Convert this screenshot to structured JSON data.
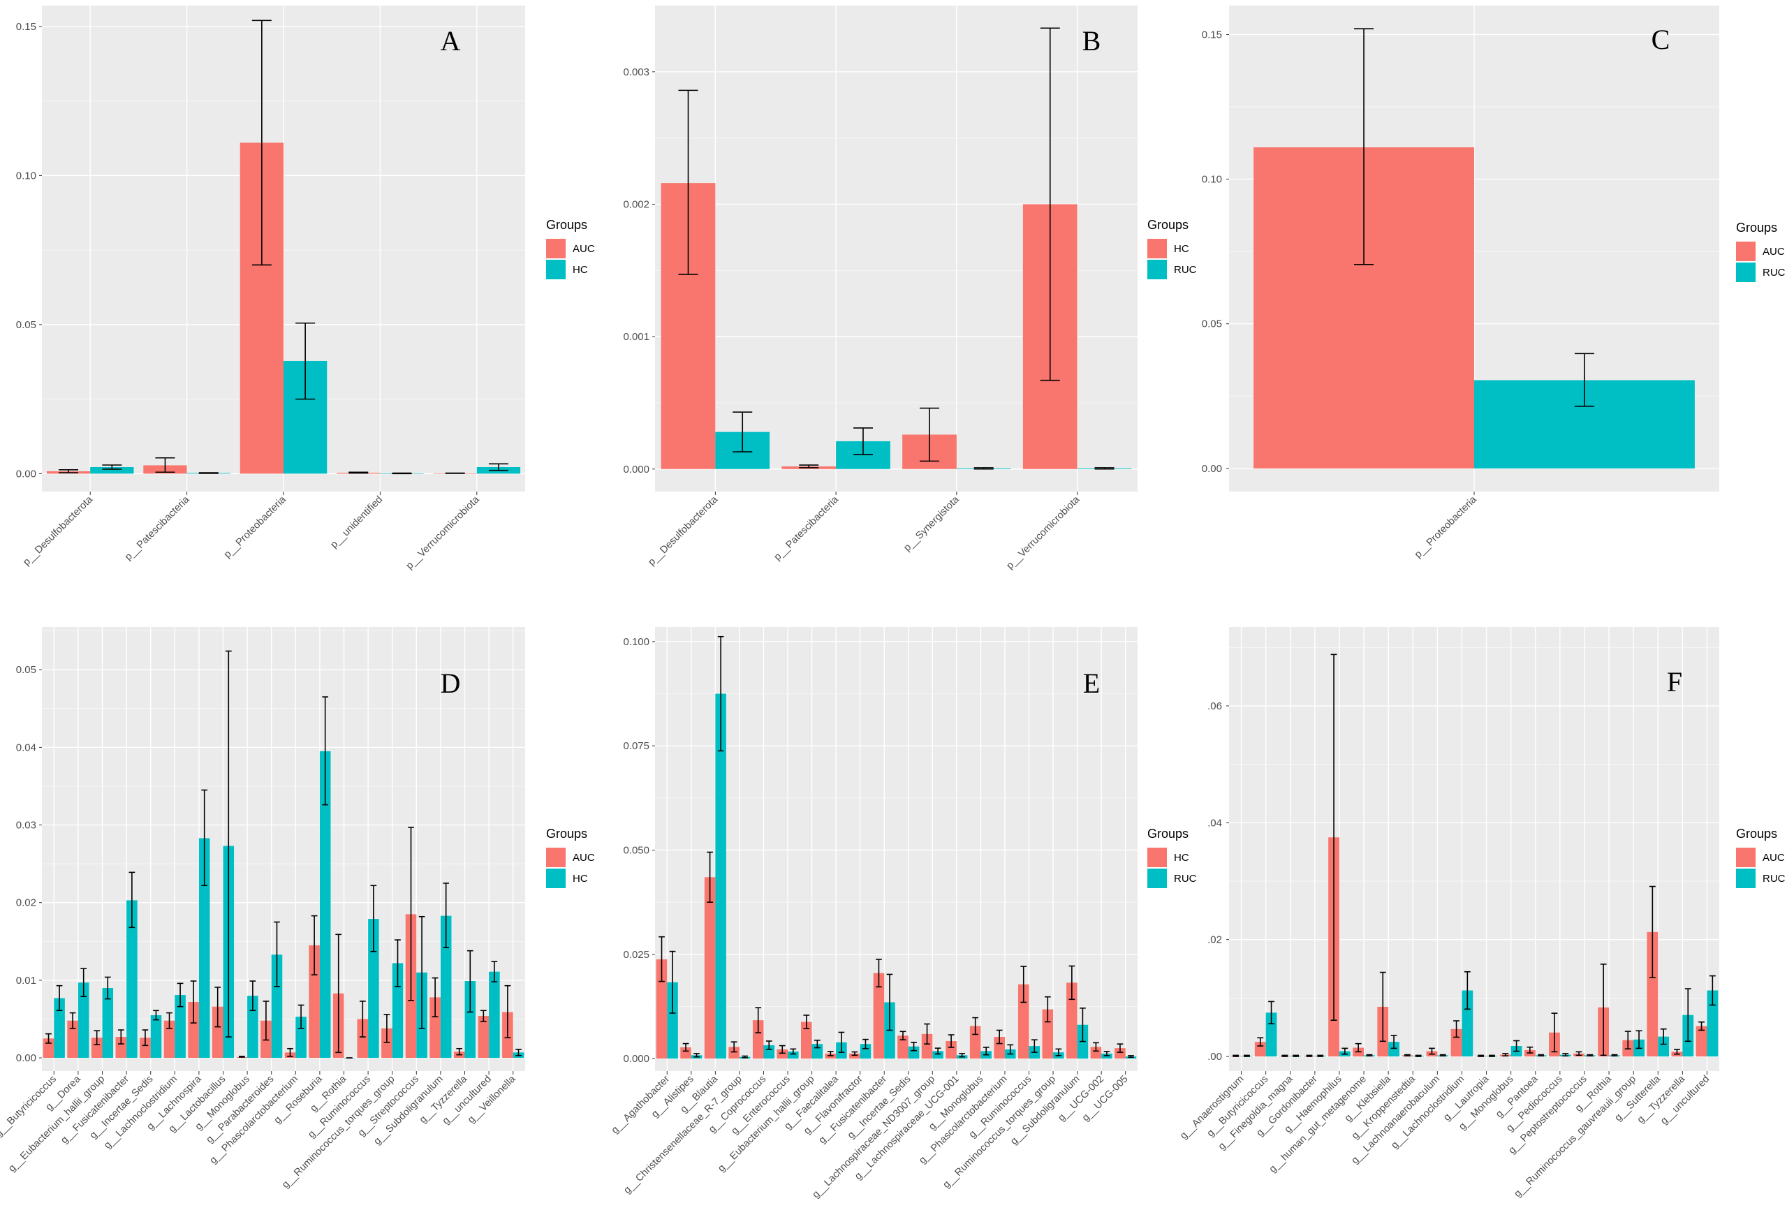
{
  "figure_title": "",
  "colors": {
    "panel_bg": "#EBEBEB",
    "grid": "#FFFFFF",
    "red": "#F8766D",
    "cyan": "#00BFC4"
  },
  "chart_data": [
    {
      "type": "bar",
      "letter": "A",
      "categories": [
        "p__Desulfobacterota",
        "p__Patescibacteria",
        "p__Proteobacteria",
        "p__unidentified",
        "p__Verrucomicrobiota"
      ],
      "series": [
        {
          "name": "AUC",
          "color": "#F8766D",
          "values": [
            0.0008,
            0.0028,
            0.111,
            0.0003,
            0.0001
          ],
          "err_low": [
            0.0003,
            0.0005,
            0.07,
            0.0002,
            0.0001
          ],
          "err_high": [
            0.0013,
            0.0053,
            0.152,
            0.0005,
            0.0002
          ]
        },
        {
          "name": "HC",
          "color": "#00BFC4",
          "values": [
            0.0022,
            0.0002,
            0.0378,
            0.0001,
            0.0022
          ],
          "err_low": [
            0.0015,
            0.0001,
            0.025,
            0.0,
            0.0011
          ],
          "err_high": [
            0.0029,
            0.0003,
            0.0505,
            0.0002,
            0.0033
          ]
        }
      ],
      "ylim": [
        -0.006,
        0.157
      ],
      "yticks": [
        0.0,
        0.05,
        0.1,
        0.15
      ],
      "ytick_labels": [
        "0.00",
        "0.05",
        "0.10",
        "0.15"
      ],
      "legend_title": "Groups",
      "legend_position": "right",
      "xlabel": "",
      "ylabel": ""
    },
    {
      "type": "bar",
      "letter": "B",
      "categories": [
        "p__Desulfobacterota",
        "p__Patescibacteria",
        "p__Synergistota",
        "p__Verrucomicrobiota"
      ],
      "series": [
        {
          "name": "HC",
          "color": "#F8766D",
          "values": [
            0.00216,
            2e-05,
            0.00026,
            0.002
          ],
          "err_low": [
            0.00147,
            1e-05,
            6e-05,
            0.00067
          ],
          "err_high": [
            0.00286,
            3e-05,
            0.00046,
            0.00333
          ]
        },
        {
          "name": "RUC",
          "color": "#00BFC4",
          "values": [
            0.00028,
            0.00021,
            5e-06,
            5e-06
          ],
          "err_low": [
            0.00013,
            0.00011,
            0.0,
            0.0
          ],
          "err_high": [
            0.00043,
            0.00031,
            1e-05,
            1e-05
          ]
        }
      ],
      "ylim": [
        -0.00017,
        0.0035
      ],
      "yticks": [
        0.0,
        0.001,
        0.002,
        0.003
      ],
      "ytick_labels": [
        "0.000",
        "0.001",
        "0.002",
        "0.003"
      ],
      "legend_title": "Groups",
      "legend_position": "right",
      "xlabel": "",
      "ylabel": ""
    },
    {
      "type": "bar",
      "letter": "C",
      "categories": [
        "p__Proteobacteria"
      ],
      "series": [
        {
          "name": "AUC",
          "color": "#F8766D",
          "values": [
            0.111
          ],
          "err_low": [
            0.0705
          ],
          "err_high": [
            0.152
          ]
        },
        {
          "name": "RUC",
          "color": "#00BFC4",
          "values": [
            0.0305
          ],
          "err_low": [
            0.0215
          ],
          "err_high": [
            0.0397
          ]
        }
      ],
      "ylim": [
        -0.008,
        0.16
      ],
      "yticks": [
        0.0,
        0.05,
        0.1,
        0.15
      ],
      "ytick_labels": [
        "0.00",
        "0.05",
        "0.10",
        "0.15"
      ],
      "legend_title": "Groups",
      "legend_position": "right",
      "xlabel": "",
      "ylabel": ""
    },
    {
      "type": "bar",
      "letter": "D",
      "categories": [
        "g__Butyricicoccus",
        "g__Dorea",
        "g__Eubacterium_hallii_group",
        "g__Fusicatenibacter",
        "g__Incertae_Sedis",
        "g__Lachnoclostridium",
        "g__Lachnospira",
        "g__Lactobacillus",
        "g__Monoglobus",
        "g__Parabacteroides",
        "g__Phascolarctobacterium",
        "g__Roseburia",
        "g__Rothia",
        "g__Ruminococcus",
        "g__Ruminococcus_torques_group",
        "g__Streptococcus",
        "g__Subdoligranulum",
        "g__Tyzzerella",
        "g__uncultured",
        "g__Veillonella"
      ],
      "series": [
        {
          "name": "AUC",
          "color": "#F8766D",
          "values": [
            0.0025,
            0.0048,
            0.0026,
            0.0027,
            0.0026,
            0.0048,
            0.0072,
            0.0066,
            0.0001,
            0.0048,
            0.0007,
            0.0145,
            0.0083,
            0.005,
            0.0038,
            0.0185,
            0.0078,
            0.0008,
            0.0054,
            0.0059
          ],
          "err_low": [
            0.0019,
            0.0038,
            0.0017,
            0.0018,
            0.0016,
            0.0038,
            0.0045,
            0.004,
            0.0001,
            0.0023,
            0.0002,
            0.0107,
            0.0007,
            0.0027,
            0.002,
            0.0074,
            0.0053,
            0.0004,
            0.0047,
            0.0026
          ],
          "err_high": [
            0.0031,
            0.0058,
            0.0035,
            0.0036,
            0.0036,
            0.0058,
            0.0099,
            0.0091,
            0.0002,
            0.0073,
            0.0012,
            0.0183,
            0.0159,
            0.0073,
            0.0056,
            0.0297,
            0.0103,
            0.0012,
            0.0061,
            0.0093
          ]
        },
        {
          "name": "HC",
          "color": "#00BFC4",
          "values": [
            0.0077,
            0.0097,
            0.009,
            0.0203,
            0.0055,
            0.0081,
            0.0283,
            0.0273,
            0.008,
            0.0133,
            0.0053,
            0.0395,
            0.0,
            0.0179,
            0.0122,
            0.011,
            0.0183,
            0.0099,
            0.0111,
            0.0007
          ],
          "err_low": [
            0.0061,
            0.0079,
            0.0076,
            0.0168,
            0.0049,
            0.0066,
            0.0222,
            0.0027,
            0.0061,
            0.0092,
            0.0038,
            0.0326,
            0.0,
            0.0137,
            0.0092,
            0.0038,
            0.0142,
            0.0059,
            0.0098,
            0.0003
          ],
          "err_high": [
            0.0093,
            0.0115,
            0.0104,
            0.0239,
            0.0061,
            0.0096,
            0.0345,
            0.0524,
            0.0099,
            0.0175,
            0.0068,
            0.0465,
            0.0,
            0.0222,
            0.0152,
            0.0182,
            0.0225,
            0.0138,
            0.0124,
            0.0011
          ]
        }
      ],
      "ylim": [
        -0.0017,
        0.0555
      ],
      "yticks": [
        0.0,
        0.01,
        0.02,
        0.03,
        0.04,
        0.05
      ],
      "ytick_labels": [
        "0.00",
        "0.01",
        "0.02",
        "0.03",
        "0.04",
        "0.05"
      ],
      "legend_title": "Groups",
      "legend_position": "right",
      "xlabel": "",
      "ylabel": ""
    },
    {
      "type": "bar",
      "letter": "E",
      "categories": [
        "g__Agathobacter",
        "g__Alistipes",
        "g__Blautia",
        "g__Christensenellaceae_R-7_group",
        "g__Coprococcus",
        "g__Enterococcus",
        "g__Eubacterium_hallii_group",
        "g__Faecalitalea",
        "g__Flavonifractor",
        "g__Fusicatenibacter",
        "g__Incertae_Sedis",
        "g__Lachnospiraceae_ND3007_group",
        "g__Lachnospiraceae_UCG-001",
        "g__Monoglobus",
        "g__Phascolarctobacterium",
        "g__Ruminococcus",
        "g__Ruminococcus_torques_group",
        "g__Subdoligranulum",
        "g__UCG-002",
        "g__UCG-005"
      ],
      "series": [
        {
          "name": "HC",
          "color": "#F8766D",
          "values": [
            0.0238,
            0.0027,
            0.0435,
            0.0028,
            0.0092,
            0.0022,
            0.0088,
            0.0012,
            0.0012,
            0.0205,
            0.0055,
            0.0059,
            0.0042,
            0.0078,
            0.0052,
            0.0178,
            0.0118,
            0.0182,
            0.0028,
            0.0025
          ],
          "err_low": [
            0.0185,
            0.0018,
            0.0375,
            0.0016,
            0.0062,
            0.0013,
            0.0072,
            0.0007,
            0.0008,
            0.0172,
            0.0045,
            0.0035,
            0.0027,
            0.0058,
            0.0036,
            0.0135,
            0.0088,
            0.0142,
            0.0018,
            0.0015
          ],
          "err_high": [
            0.0292,
            0.0036,
            0.0495,
            0.004,
            0.0122,
            0.0031,
            0.0104,
            0.0017,
            0.0016,
            0.0238,
            0.0065,
            0.0083,
            0.0057,
            0.0098,
            0.0068,
            0.0221,
            0.0148,
            0.0222,
            0.0038,
            0.0035
          ]
        },
        {
          "name": "RUC",
          "color": "#00BFC4",
          "values": [
            0.0183,
            0.0008,
            0.0875,
            0.0004,
            0.0032,
            0.0017,
            0.0035,
            0.0039,
            0.0035,
            0.0135,
            0.0029,
            0.0018,
            0.0008,
            0.0018,
            0.0022,
            0.003,
            0.0015,
            0.0081,
            0.0012,
            0.0005
          ],
          "err_low": [
            0.0109,
            0.0004,
            0.0738,
            0.0002,
            0.0022,
            0.0011,
            0.0026,
            0.0015,
            0.0024,
            0.0068,
            0.0019,
            0.0011,
            0.0004,
            0.0009,
            0.0011,
            0.0015,
            0.0007,
            0.0041,
            0.0007,
            0.0003
          ],
          "err_high": [
            0.0257,
            0.0012,
            0.1012,
            0.0006,
            0.0042,
            0.0023,
            0.0044,
            0.0063,
            0.0046,
            0.0202,
            0.0039,
            0.0025,
            0.0012,
            0.0027,
            0.0033,
            0.0045,
            0.0023,
            0.0121,
            0.0017,
            0.0007
          ]
        }
      ],
      "ylim": [
        -0.003,
        0.1035
      ],
      "yticks": [
        0.0,
        0.025,
        0.05,
        0.075,
        0.1
      ],
      "ytick_labels": [
        "0.000",
        "0.025",
        "0.050",
        "0.075",
        "0.100"
      ],
      "legend_title": "Groups",
      "legend_position": "right",
      "xlabel": "",
      "ylabel": ""
    },
    {
      "type": "bar",
      "letter": "F",
      "categories": [
        "g__Anaerostignum",
        "g__Butyricicoccus",
        "g__Finegoldia_magna",
        "g__Gordonibacter",
        "g__Haemophilus",
        "g__human_gut_metagenome",
        "g__Klebsiella",
        "g__Kroppenstedtia",
        "g__Lachnoanaerobaculum",
        "g__Lachnoclostridium",
        "g__Lautropia",
        "g__Monoglobus",
        "g__Pantoea",
        "g__Pediococcus",
        "g__Peptostreptococcus",
        "g__Rothia",
        "g__Ruminococcus_gauvreauii_group",
        "g__Sutterella",
        "g__Tyzzerella",
        "g__uncultured"
      ],
      "series": [
        {
          "name": "AUC",
          "color": "#F8766D",
          "values": [
            0.0001,
            0.0025,
            0.0001,
            0.0001,
            0.0375,
            0.0015,
            0.0085,
            0.0002,
            0.0009,
            0.0047,
            0.0001,
            0.0003,
            0.0011,
            0.0041,
            0.0005,
            0.0084,
            0.0028,
            0.0213,
            0.0008,
            0.0052
          ],
          "err_low": [
            0.0,
            0.0018,
            0.0,
            0.0,
            0.0062,
            0.0008,
            0.0026,
            0.0001,
            0.0004,
            0.0033,
            0.0,
            0.0001,
            0.0006,
            0.0008,
            0.0002,
            0.0002,
            0.0013,
            0.0135,
            0.0004,
            0.0045
          ],
          "err_high": [
            0.0002,
            0.0032,
            0.0002,
            0.0002,
            0.0688,
            0.0022,
            0.0144,
            0.0003,
            0.0014,
            0.0061,
            0.0002,
            0.0005,
            0.0016,
            0.0074,
            0.0008,
            0.0158,
            0.0043,
            0.0291,
            0.0012,
            0.0059
          ]
        },
        {
          "name": "RUC",
          "color": "#00BFC4",
          "values": [
            0.0001,
            0.0075,
            0.0001,
            0.0001,
            0.0009,
            0.0002,
            0.0025,
            0.0001,
            0.0002,
            0.0113,
            0.0001,
            0.0018,
            0.0002,
            0.0003,
            0.0002,
            0.0002,
            0.0029,
            0.0034,
            0.0071,
            0.0113
          ],
          "err_low": [
            0.0,
            0.0056,
            0.0,
            0.0,
            0.0004,
            0.0001,
            0.0014,
            0.0,
            0.0001,
            0.0081,
            0.0,
            0.0009,
            0.0001,
            0.0001,
            0.0001,
            0.0001,
            0.0014,
            0.0021,
            0.0026,
            0.0088
          ],
          "err_high": [
            0.0002,
            0.0094,
            0.0002,
            0.0002,
            0.0014,
            0.0003,
            0.0036,
            0.0002,
            0.0003,
            0.0145,
            0.0002,
            0.0027,
            0.0003,
            0.0005,
            0.0003,
            0.0003,
            0.0044,
            0.0047,
            0.0116,
            0.0138
          ]
        }
      ],
      "ylim": [
        -0.0025,
        0.0735
      ],
      "yticks": [
        0.0,
        0.02,
        0.04,
        0.06
      ],
      "ytick_labels": [
        ".00",
        ".02",
        ".04",
        ".06"
      ],
      "legend_title": "Groups",
      "legend_position": "right",
      "xlabel": "",
      "ylabel": ""
    }
  ]
}
